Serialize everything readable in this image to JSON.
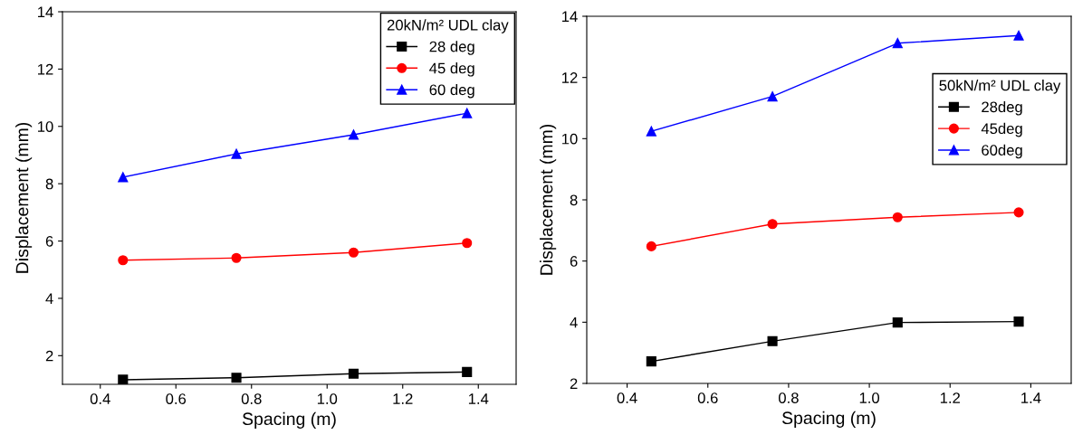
{
  "chart_data": [
    {
      "type": "line",
      "xlabel": "Spacing (m)",
      "ylabel": "Displacement (mm)",
      "legend_title": "20kN/m² UDL clay",
      "legend": "top right",
      "line_style": "solid",
      "x": [
        0.46,
        0.76,
        1.07,
        1.37
      ],
      "xlim": [
        0.3,
        1.5
      ],
      "xticks": [
        0.4,
        0.6,
        0.8,
        {
          "value": 1,
          "label": "1.0"
        },
        1.2,
        1.4
      ],
      "ylim": [
        1,
        14
      ],
      "yticks": [
        2,
        4,
        6,
        8,
        10,
        12,
        14
      ],
      "grid": false,
      "series": [
        {
          "name": "28 deg",
          "color": "#000000",
          "marker": "square",
          "values": [
            1.16,
            1.23,
            1.37,
            1.43
          ]
        },
        {
          "name": "45 deg",
          "color": "#ff0000",
          "marker": "circle",
          "values": [
            5.33,
            5.41,
            5.6,
            5.93
          ]
        },
        {
          "name": "60 deg",
          "color": "#0000ff",
          "marker": "triangle",
          "values": [
            8.23,
            9.04,
            9.71,
            10.46
          ]
        }
      ]
    },
    {
      "type": "line",
      "xlabel": "Spacing (m)",
      "ylabel": "Displacement (mm)",
      "legend_title": "50kN/m² UDL clay",
      "legend": "right",
      "line_style": "solid",
      "x": [
        0.46,
        0.76,
        1.07,
        1.37
      ],
      "xlim": [
        0.3,
        1.5
      ],
      "xticks": [
        0.4,
        0.6,
        0.8,
        {
          "value": 1,
          "label": "1.0"
        },
        1.2,
        1.4
      ],
      "ylim": [
        2,
        14
      ],
      "yticks": [
        2,
        4,
        6,
        8,
        10,
        12,
        14
      ],
      "grid": false,
      "series": [
        {
          "name": "28deg",
          "color": "#000000",
          "marker": "square",
          "values": [
            2.72,
            3.38,
            3.99,
            4.02
          ]
        },
        {
          "name": "45deg",
          "color": "#ff0000",
          "marker": "circle",
          "values": [
            6.48,
            7.21,
            7.43,
            7.59
          ]
        },
        {
          "name": "60deg",
          "color": "#0000ff",
          "marker": "triangle",
          "values": [
            10.24,
            11.38,
            13.12,
            13.37
          ]
        }
      ]
    }
  ]
}
